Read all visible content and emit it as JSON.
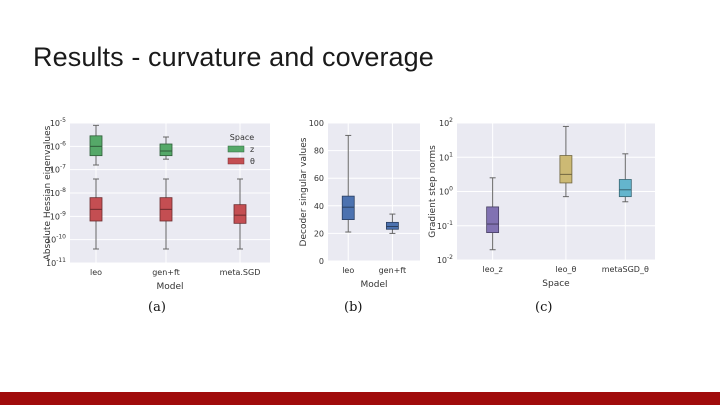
{
  "slide": {
    "title": "Results - curvature and coverage",
    "captions": [
      "(a)",
      "(b)",
      "(c)"
    ]
  },
  "colors": {
    "footer": "#a00b0b",
    "plot_bg": "#eaeaf2"
  },
  "chart_data": [
    {
      "type": "box",
      "scale": "log",
      "xlabel": "Model",
      "ylabel": "Absolute Hessian eigenvalues",
      "ylim_exp": [
        -11,
        -5
      ],
      "yticks": [
        {
          "b": "10",
          "e": "-5",
          "v": -5
        },
        {
          "b": "10",
          "e": "-6",
          "v": -6
        },
        {
          "b": "10",
          "e": "-7",
          "v": -7
        },
        {
          "b": "10",
          "e": "-8",
          "v": -8
        },
        {
          "b": "10",
          "e": "-9",
          "v": -9
        },
        {
          "b": "10",
          "e": "-10",
          "v": -10
        },
        {
          "b": "10",
          "e": "-11",
          "v": -11
        }
      ],
      "categories": [
        "leo",
        "gen+ft",
        "meta.SGD"
      ],
      "legend": {
        "title": "Space",
        "entries": [
          {
            "label": "z",
            "color": "#55a868"
          },
          {
            "label": "θ",
            "color": "#c44e52"
          }
        ]
      },
      "series": [
        {
          "name": "z",
          "color": "#55a868",
          "boxes": [
            {
              "cat": 0,
              "whislo": -6.8,
              "q1": -6.4,
              "med": -6.0,
              "q3": -5.55,
              "whishi": -5.1
            },
            {
              "cat": 1,
              "whislo": -6.55,
              "q1": -6.4,
              "med": -6.2,
              "q3": -5.9,
              "whishi": -5.6
            }
          ]
        },
        {
          "name": "θ",
          "color": "#c44e52",
          "boxes": [
            {
              "cat": 0,
              "whislo": -10.4,
              "q1": -9.2,
              "med": -8.7,
              "q3": -8.2,
              "whishi": -7.4
            },
            {
              "cat": 1,
              "whislo": -10.4,
              "q1": -9.2,
              "med": -8.7,
              "q3": -8.2,
              "whishi": -7.4
            },
            {
              "cat": 2,
              "whislo": -10.4,
              "q1": -9.3,
              "med": -8.95,
              "q3": -8.5,
              "whishi": -7.4
            }
          ]
        }
      ]
    },
    {
      "type": "box",
      "scale": "linear",
      "xlabel": "Model",
      "ylabel": "Decoder singular values",
      "ylim": [
        0,
        100
      ],
      "yticks": [
        0,
        20,
        40,
        60,
        80,
        100
      ],
      "categories": [
        "leo",
        "gen+ft"
      ],
      "series": [
        {
          "color": "#4c72b0",
          "boxes": [
            {
              "cat": 0,
              "whislo": 21,
              "q1": 30,
              "med": 39,
              "q3": 47,
              "whishi": 91
            },
            {
              "cat": 1,
              "whislo": 20,
              "q1": 23,
              "med": 25,
              "q3": 28,
              "whishi": 34
            }
          ]
        }
      ]
    },
    {
      "type": "box",
      "scale": "log",
      "xlabel": "Space",
      "ylabel": "Gradient step norms",
      "ylim_exp": [
        -2,
        2
      ],
      "yticks": [
        {
          "b": "10",
          "e": "2",
          "v": 2
        },
        {
          "b": "10",
          "e": "1",
          "v": 1
        },
        {
          "b": "10",
          "e": "0",
          "v": 0
        },
        {
          "b": "10",
          "e": "-1",
          "v": -1
        },
        {
          "b": "10",
          "e": "-2",
          "v": -2
        }
      ],
      "categories": [
        "leo_z",
        "leo_θ",
        "metaSGD_θ"
      ],
      "series": [
        {
          "boxes": [
            {
              "cat": 0,
              "color": "#8172b2",
              "whislo": -1.7,
              "q1": -1.2,
              "med": -0.95,
              "q3": -0.45,
              "whishi": 0.4
            },
            {
              "cat": 1,
              "color": "#ccb974",
              "whislo": -0.15,
              "q1": 0.25,
              "med": 0.5,
              "q3": 1.05,
              "whishi": 1.9
            },
            {
              "cat": 2,
              "color": "#64b5cd",
              "whislo": -0.3,
              "q1": -0.15,
              "med": 0.05,
              "q3": 0.35,
              "whishi": 1.1
            }
          ]
        }
      ]
    }
  ]
}
